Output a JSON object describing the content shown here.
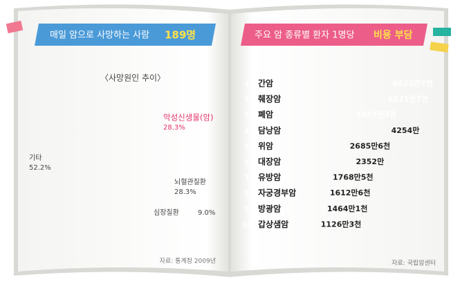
{
  "chart_data": [
    {
      "type": "pie",
      "title": "매일 암으로 사망하는 사람",
      "title_highlight": "189명",
      "subtitle": "〈사망원인 추이〉",
      "source": "자료: 통계청 2009년",
      "categories": [
        "악성신생물(암)",
        "뇌혈관질환",
        "심장질환",
        "기타"
      ],
      "values": [
        28.3,
        28.3,
        9.0,
        52.2
      ],
      "value_labels": [
        "28.3%",
        "28.3%",
        "9.0%",
        "52.2%"
      ],
      "colors": [
        "#f7a9a3",
        "#fbb93e",
        "#94d6ea",
        "#f6a3c2"
      ]
    },
    {
      "type": "hbar",
      "title": "주요 암 종류별 환자 1명당",
      "title_highlight": "비용 부담",
      "source": "자료: 국립암센터",
      "ranks": [
        1,
        2,
        3,
        4,
        5,
        6,
        7,
        8,
        9,
        10
      ],
      "categories": [
        "간암",
        "췌장암",
        "폐암",
        "담낭암",
        "위암",
        "대장암",
        "유방암",
        "자궁경부암",
        "방광암",
        "갑상샘암"
      ],
      "values": [
        6622.7,
        6371.7,
        4657.3,
        4254,
        2685.6,
        2352,
        1768.5,
        1612.6,
        1464.1,
        1126.3
      ],
      "value_labels": [
        "6622만7천",
        "6371만7천",
        "4657만3천",
        "4254만",
        "2685만6천",
        "2352만",
        "1768만5천",
        "1612만6천",
        "1464만1천",
        "1126만3천"
      ],
      "color": "#e9587c"
    }
  ]
}
